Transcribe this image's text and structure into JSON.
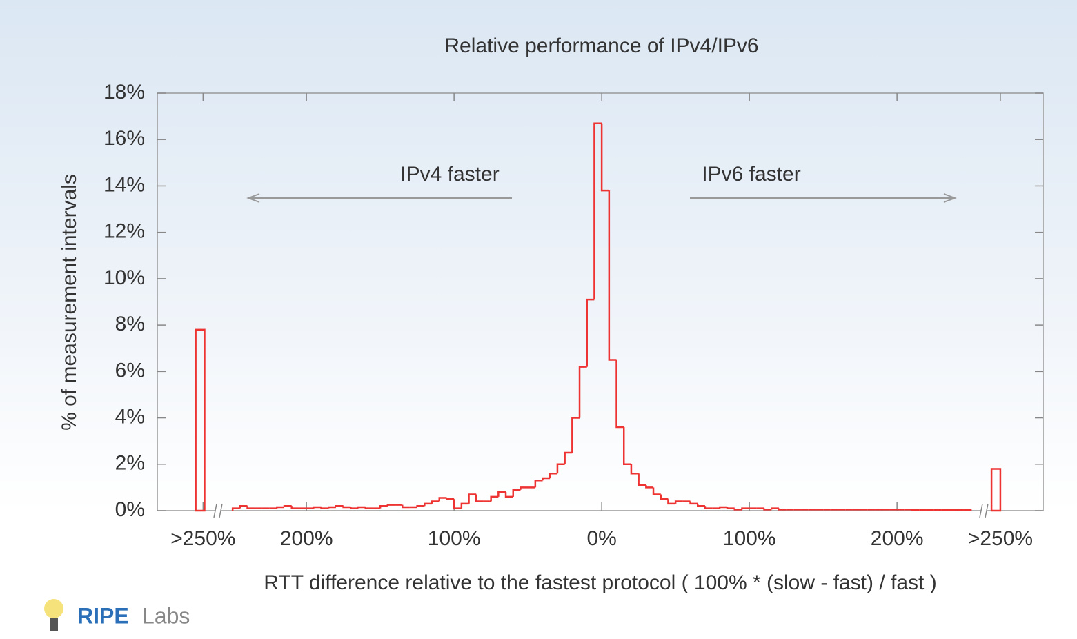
{
  "chart_data": {
    "type": "histogram",
    "title": "Relative performance of IPv4/IPv6",
    "x_label": "RTT difference relative to the fastest protocol ( 100% * (slow - fast) / fast )",
    "y_label": "% of measurement intervals",
    "annotations": [
      "IPv4 faster",
      "IPv6 faster"
    ],
    "logo": [
      "RIPE",
      "Labs"
    ],
    "color": "#ee3333",
    "xlim": [
      -301,
      299
    ],
    "ylim": [
      0,
      18
    ],
    "xticks": [
      {
        "value": -270,
        "label": ">250%"
      },
      {
        "value": -200,
        "label": "200%"
      },
      {
        "value": -100,
        "label": "100%"
      },
      {
        "value": 0,
        "label": "0%"
      },
      {
        "value": 100,
        "label": "100%"
      },
      {
        "value": 200,
        "label": "200%"
      },
      {
        "value": 270,
        "label": ">250%"
      }
    ],
    "yticks": [
      {
        "value": 0,
        "label": "0%"
      },
      {
        "value": 2,
        "label": "2%"
      },
      {
        "value": 4,
        "label": "4%"
      },
      {
        "value": 6,
        "label": "6%"
      },
      {
        "value": 8,
        "label": "8%"
      },
      {
        "value": 10,
        "label": "10%"
      },
      {
        "value": 12,
        "label": "12%"
      },
      {
        "value": 14,
        "label": "14%"
      },
      {
        "value": 16,
        "label": "16%"
      },
      {
        "value": 18,
        "label": "18%"
      }
    ],
    "bins": [
      -250,
      -245,
      -240,
      -235,
      -230,
      -225,
      -220,
      -215,
      -210,
      -205,
      -200,
      -195,
      -190,
      -185,
      -180,
      -175,
      -170,
      -165,
      -160,
      -155,
      -150,
      -145,
      -140,
      -135,
      -130,
      -125,
      -120,
      -115,
      -110,
      -105,
      -100,
      -95,
      -90,
      -85,
      -80,
      -75,
      -70,
      -65,
      -60,
      -55,
      -50,
      -45,
      -40,
      -35,
      -30,
      -25,
      -20,
      -15,
      -10,
      -5,
      0,
      5,
      10,
      15,
      20,
      25,
      30,
      35,
      40,
      45,
      50,
      55,
      60,
      65,
      70,
      75,
      80,
      85,
      90,
      95,
      100,
      105,
      110,
      115,
      120,
      125,
      130,
      135,
      140,
      145,
      150,
      155,
      160,
      165,
      170,
      175,
      180,
      185,
      190,
      195,
      200,
      205,
      210,
      215,
      220,
      225,
      230,
      235,
      240,
      245,
      250
    ],
    "values": [
      0.1,
      0.2,
      0.1,
      0.1,
      0.1,
      0.1,
      0.15,
      0.2,
      0.1,
      0.1,
      0.1,
      0.15,
      0.1,
      0.15,
      0.2,
      0.15,
      0.1,
      0.15,
      0.1,
      0.1,
      0.2,
      0.25,
      0.25,
      0.15,
      0.15,
      0.2,
      0.3,
      0.4,
      0.55,
      0.5,
      0.1,
      0.3,
      0.7,
      0.4,
      0.4,
      0.6,
      0.8,
      0.6,
      0.9,
      1.0,
      1.0,
      1.3,
      1.4,
      1.6,
      2.0,
      2.5,
      4.0,
      6.2,
      9.1,
      16.7,
      13.8,
      6.5,
      3.6,
      2.0,
      1.6,
      1.1,
      1.0,
      0.7,
      0.5,
      0.3,
      0.4,
      0.4,
      0.3,
      0.2,
      0.1,
      0.1,
      0.15,
      0.1,
      0.05,
      0.1,
      0.1,
      0.1,
      0.05,
      0.1,
      0.05,
      0.05,
      0.05,
      0.05,
      0.05,
      0.05,
      0.05,
      0.05,
      0.05,
      0.05,
      0.05,
      0.05,
      0.05,
      0.05,
      0.05,
      0.05,
      0.05,
      0.05,
      0.03,
      0.03,
      0.03,
      0.03,
      0.03,
      0.03,
      0.03,
      0.03
    ],
    "overflow": [
      {
        "bins": [
          -275,
          -269
        ],
        "value": 7.8
      },
      {
        "bins": [
          264,
          270
        ],
        "value": 1.8
      }
    ]
  }
}
